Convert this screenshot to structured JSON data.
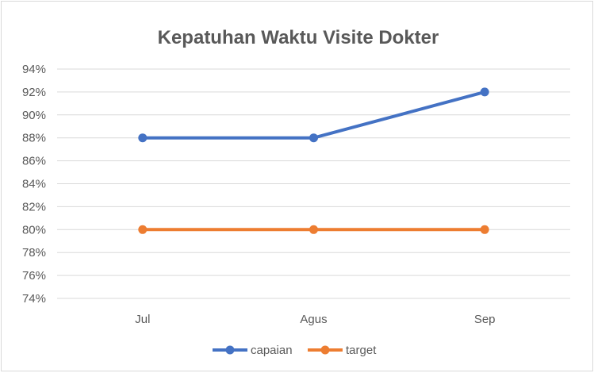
{
  "chart_data": {
    "type": "line",
    "title": "Kepatuhan Waktu Visite Dokter",
    "categories": [
      "Jul",
      "Agus",
      "Sep"
    ],
    "series": [
      {
        "name": "capaian",
        "color": "#4472c4",
        "values": [
          88,
          88,
          92
        ]
      },
      {
        "name": "target",
        "color": "#ed7d31",
        "values": [
          80,
          80,
          80
        ]
      }
    ],
    "ylim": [
      74,
      94
    ],
    "ytick_step": 2,
    "ytick_labels": [
      "74%",
      "76%",
      "78%",
      "80%",
      "82%",
      "84%",
      "86%",
      "88%",
      "90%",
      "92%",
      "94%"
    ],
    "grid": true,
    "legend": "bottom"
  }
}
